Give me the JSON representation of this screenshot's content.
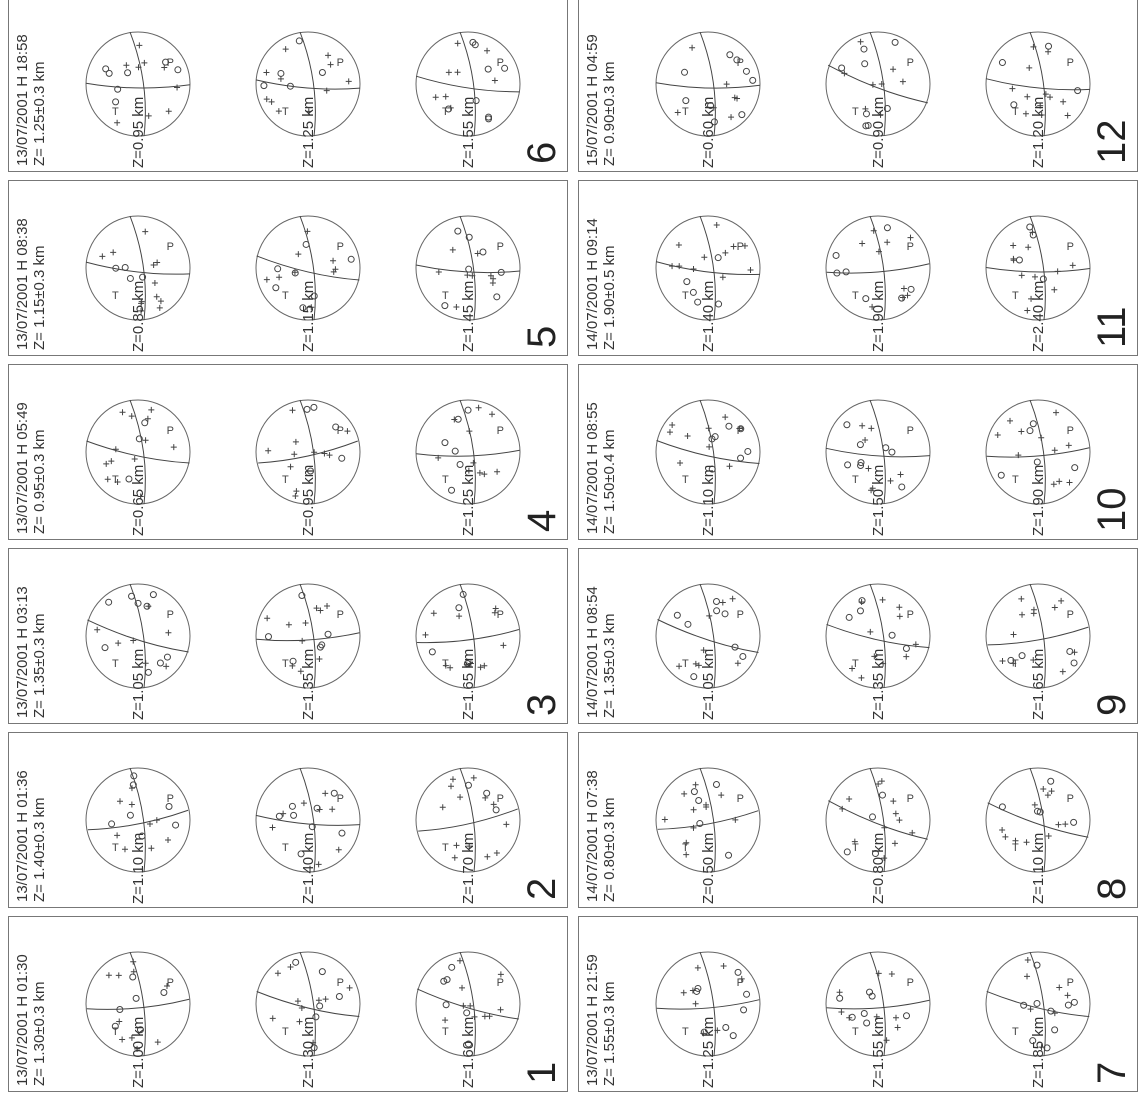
{
  "events": [
    {
      "number": "1",
      "date": "13/07/2001 H 01:30",
      "depth": "Z= 1.30±0.3 km",
      "solutions": [
        "Z=1.00 km",
        "Z=1.30 km",
        "Z=1.60 km"
      ]
    },
    {
      "number": "2",
      "date": "13/07/2001 H 01:36",
      "depth": "Z= 1.40±0.3 km",
      "solutions": [
        "Z=1.10 km",
        "Z=1.40 km",
        "Z=1.70 km"
      ]
    },
    {
      "number": "3",
      "date": "13/07/2001 H 03:13",
      "depth": "Z= 1.35±0.3 km",
      "solutions": [
        "Z=1.05 km",
        "Z=1.35 km",
        "Z=1.65 km"
      ]
    },
    {
      "number": "4",
      "date": "13/07/2001 H 05:49",
      "depth": "Z= 0.95±0.3 km",
      "solutions": [
        "Z=0.65 km",
        "Z=0.95 km",
        "Z=1.25 km"
      ]
    },
    {
      "number": "5",
      "date": "13/07/2001 H 08:38",
      "depth": "Z= 1.15±0.3 km",
      "solutions": [
        "Z=0.85 km",
        "Z=1.15 km",
        "Z=1.45 km"
      ]
    },
    {
      "number": "6",
      "date": "13/07/2001 H 18:58",
      "depth": "Z= 1.25±0.3 km",
      "solutions": [
        "Z=0.95 km",
        "Z=1.25 km",
        "Z=1.55 km"
      ]
    },
    {
      "number": "7",
      "date": "13/07/2001 H 21:59",
      "depth": "Z= 1.55±0.3 km",
      "solutions": [
        "Z=1.25 km",
        "Z=1.55 km",
        "Z=1.85 km"
      ]
    },
    {
      "number": "8",
      "date": "14/07/2001 H 07:38",
      "depth": "Z= 0.80±0.3 km",
      "solutions": [
        "Z=0.50 km",
        "Z=0.80 km",
        "Z=1.10 km"
      ]
    },
    {
      "number": "9",
      "date": "14/07/2001 H 08:54",
      "depth": "Z= 1.35±0.3 km",
      "solutions": [
        "Z=1.05 km",
        "Z=1.35 km",
        "Z=1.65 km"
      ]
    },
    {
      "number": "10",
      "date": "14/07/2001 H 08:55",
      "depth": "Z= 1.50±0.4 km",
      "solutions": [
        "Z=1.10 km",
        "Z=1.50 km",
        "Z=1.90 km"
      ]
    },
    {
      "number": "11",
      "date": "14/07/2001 H 09:14",
      "depth": "Z= 1.90±0.5 km",
      "solutions": [
        "Z=1.40 km",
        "Z=1.90 km",
        "Z=2.40 km"
      ]
    },
    {
      "number": "12",
      "date": "15/07/2001 H 04:59",
      "depth": "Z= 0.90±0.3 km",
      "solutions": [
        "Z=0.60 km",
        "Z=0.90 km",
        "Z=1.20 km"
      ]
    }
  ],
  "symbols": {
    "compression": "+",
    "dilatation": "○",
    "p_axis": "P",
    "t_axis": "T"
  },
  "colors": {
    "frame": "#777777",
    "lines": "#444444",
    "text": "#333333"
  }
}
